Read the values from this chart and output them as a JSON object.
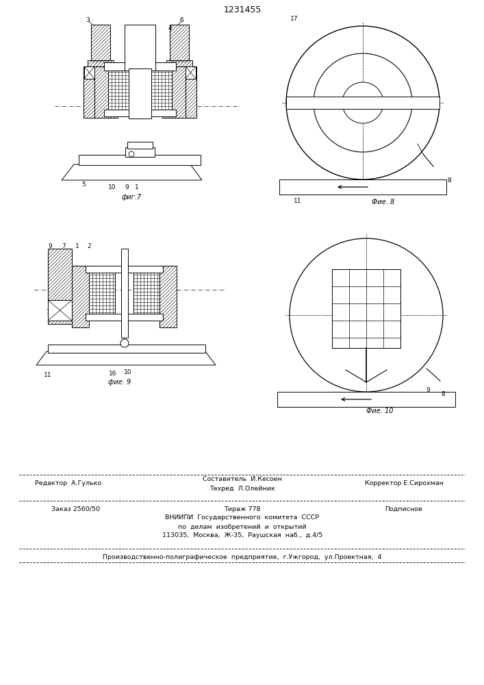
{
  "title": "1231455",
  "bg_color": "#ffffff",
  "line_color": "#000000",
  "fig_labels": {
    "fig7": "фиг.7",
    "fig8": "Фие. 8",
    "fig9": "фие. 9",
    "fig10": "Фие. 10"
  },
  "footer": {
    "line1_left": "Редактор  А.Гулько",
    "line1_center": "Составитель  И.Кесоен",
    "line1_center2": "Техред  Л.Олейник",
    "line1_right": "Корректор Е.Сирохман",
    "line2_left": "Заказ 2560/50",
    "line2_center": "Тираж 778",
    "line2_right": "Подписное",
    "line3": "ВНИИПИ  Государственного  комитета  СССР",
    "line4": "по  делам  изобретений  и  открытий",
    "line5": "113035,  Москва,  Ж-35,  Раушская  наб.,  д.4/5",
    "line6": "Производственно-полиграфическое  предприятие,  г.Ужгород,  ул.Проектная,  4"
  }
}
